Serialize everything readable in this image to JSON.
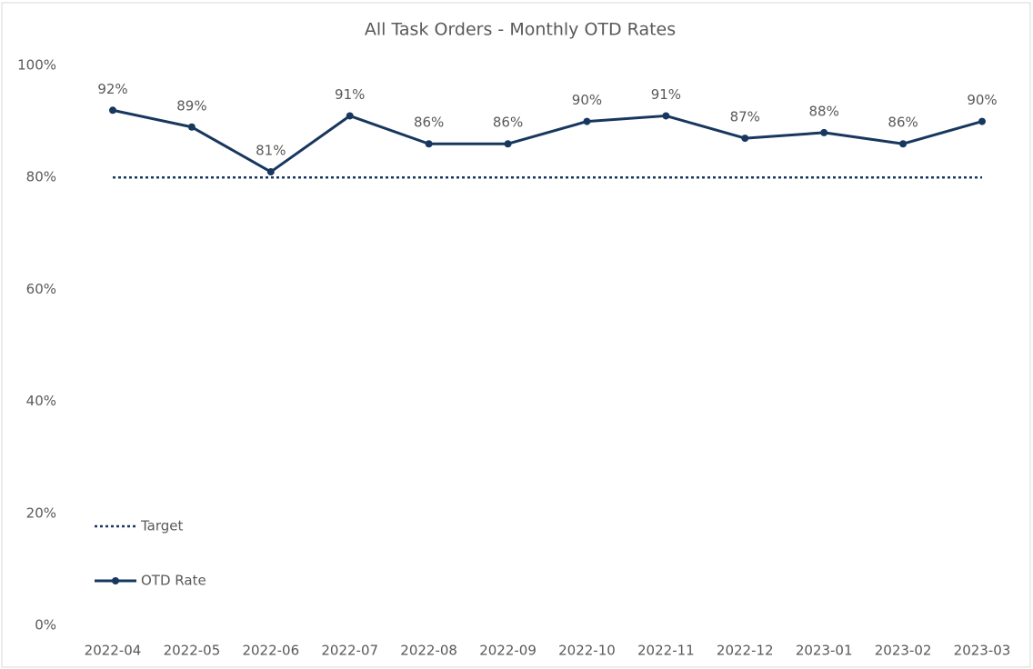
{
  "chart_data": {
    "type": "line",
    "title": "All Task Orders - Monthly OTD Rates",
    "categories": [
      "2022-04",
      "2022-05",
      "2022-06",
      "2022-07",
      "2022-08",
      "2022-09",
      "2022-10",
      "2022-11",
      "2022-12",
      "2023-01",
      "2023-02",
      "2023-03"
    ],
    "series": [
      {
        "name": "Target",
        "color": "#17375e",
        "style": "dotted",
        "values": [
          80,
          80,
          80,
          80,
          80,
          80,
          80,
          80,
          80,
          80,
          80,
          80
        ]
      },
      {
        "name": "OTD Rate",
        "color": "#17375e",
        "style": "solid",
        "markers": true,
        "values": [
          92,
          89,
          81,
          91,
          86,
          86,
          90,
          91,
          87,
          88,
          86,
          90
        ],
        "value_labels": [
          "92%",
          "89%",
          "81%",
          "91%",
          "86%",
          "86%",
          "90%",
          "91%",
          "87%",
          "88%",
          "86%",
          "90%"
        ]
      }
    ],
    "ylim": [
      0,
      100
    ],
    "yticks": [
      {
        "value": 0,
        "label": "0%"
      },
      {
        "value": 20,
        "label": "20%"
      },
      {
        "value": 40,
        "label": "40%"
      },
      {
        "value": 60,
        "label": "60%"
      },
      {
        "value": 80,
        "label": "80%"
      },
      {
        "value": 100,
        "label": "100%"
      }
    ],
    "grid": false,
    "legend": "lower left"
  }
}
